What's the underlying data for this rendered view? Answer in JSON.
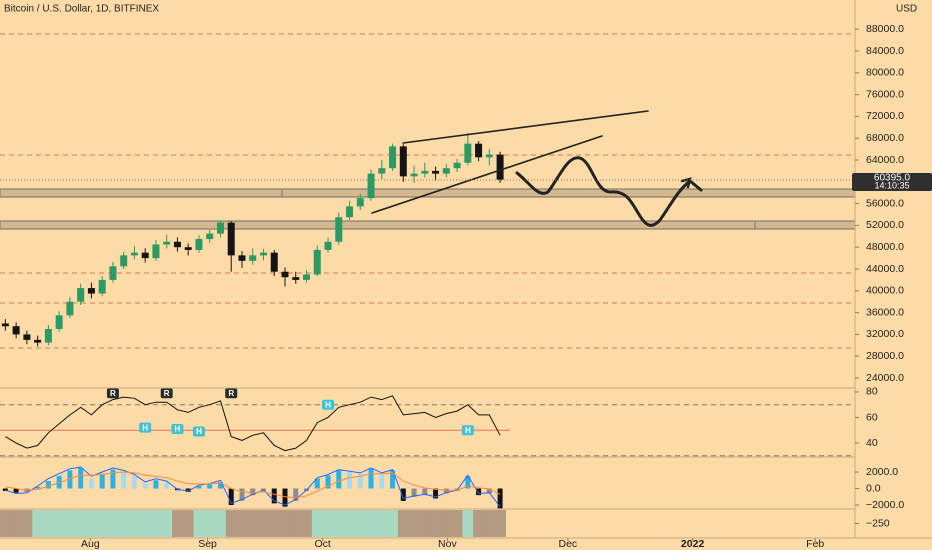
{
  "chart_data": [
    {
      "type": "candlestick",
      "title": "Bitcoin / U.S. Dollar, 1D, BITFINEX",
      "currency": "USD",
      "up_color": "#2b9a63",
      "down_color": "#141414",
      "open": [
        34000,
        33500,
        32000,
        31000,
        30500,
        33000,
        35500,
        38000,
        40500,
        39500,
        42000,
        44500,
        46500,
        47000,
        46000,
        48500,
        49000,
        48000,
        47500,
        49500,
        50500,
        52500,
        46500,
        45500,
        46500,
        47000,
        43500,
        42500,
        42000,
        43000,
        47500,
        49000,
        53500,
        55500,
        57000,
        61500,
        62500,
        66500,
        61000,
        61500,
        62000,
        61500,
        62500,
        63500,
        67000,
        64500,
        65000
      ],
      "high": [
        34800,
        34200,
        32700,
        31800,
        33700,
        36200,
        38900,
        41300,
        41500,
        42700,
        45300,
        47200,
        48200,
        47800,
        49300,
        50300,
        49800,
        48700,
        50200,
        51200,
        52900,
        52800,
        47300,
        47800,
        47700,
        47500,
        44300,
        43500,
        43800,
        48300,
        49800,
        54300,
        56500,
        57800,
        62300,
        64000,
        67000,
        66900,
        63000,
        63500,
        62800,
        63300,
        64200,
        69000,
        67500,
        66000,
        65500
      ],
      "low": [
        32700,
        31300,
        30200,
        29800,
        30000,
        32500,
        35000,
        37400,
        38600,
        39000,
        41500,
        44000,
        45800,
        45200,
        45500,
        47800,
        47200,
        46500,
        47000,
        48800,
        49800,
        43500,
        44200,
        44800,
        45600,
        42700,
        40800,
        41300,
        41500,
        42700,
        47000,
        48500,
        53000,
        54800,
        56500,
        60500,
        62000,
        60000,
        59800,
        60800,
        60200,
        60800,
        61800,
        63000,
        63800,
        63000,
        59800
      ],
      "close": [
        33500,
        32000,
        31000,
        30500,
        33000,
        35500,
        38000,
        40500,
        39500,
        42000,
        44500,
        46500,
        47000,
        46000,
        48500,
        49000,
        48000,
        47500,
        49500,
        50500,
        52500,
        46500,
        45500,
        46500,
        47000,
        43500,
        42500,
        42000,
        43000,
        47500,
        49000,
        53500,
        55500,
        57000,
        61500,
        62500,
        66500,
        61000,
        61500,
        62000,
        61500,
        62500,
        63500,
        67000,
        64500,
        65000,
        60400
      ],
      "xlim": [
        -0.5,
        79
      ],
      "xticks": [
        {
          "value": 7.9,
          "label": "Aug"
        },
        {
          "value": 18.8,
          "label": "Sep"
        },
        {
          "value": 29.5,
          "label": "Oct"
        },
        {
          "value": 41.1,
          "label": "Nov"
        },
        {
          "value": 52.3,
          "label": "Dec"
        },
        {
          "value": 63.9,
          "label": "2022"
        },
        {
          "value": 75.3,
          "label": "Feb"
        }
      ],
      "ylim": [
        22350,
        93360
      ],
      "yticks": [
        {
          "value": 88000,
          "label": "88000.0"
        },
        {
          "value": 84000,
          "label": "84000.0"
        },
        {
          "value": 80000,
          "label": "80000.0"
        },
        {
          "value": 76000,
          "label": "76000.0"
        },
        {
          "value": 72000,
          "label": "72000.0"
        },
        {
          "value": 68000,
          "label": "68000.0"
        },
        {
          "value": 64000,
          "label": "64000.0"
        },
        {
          "value": 56000,
          "label": "56000.0"
        },
        {
          "value": 52000,
          "label": "52000.0"
        },
        {
          "value": 48000,
          "label": "48000.0"
        },
        {
          "value": 44000,
          "label": "44000.0"
        },
        {
          "value": 40000,
          "label": "40000.0"
        },
        {
          "value": 36000,
          "label": "36000.0"
        },
        {
          "value": 32000,
          "label": "32000.0"
        },
        {
          "value": 28000,
          "label": "28000.0"
        },
        {
          "value": 24000,
          "label": "24000.0"
        }
      ],
      "last_price": {
        "value": 60395,
        "label": "60395.0"
      },
      "countdown": "14:10:35"
    },
    {
      "type": "line",
      "color": "#111111",
      "values": [
        45,
        40,
        36,
        38,
        48,
        55,
        62,
        68,
        62,
        70,
        74,
        76,
        75,
        70,
        72,
        72,
        66,
        64,
        68,
        70,
        73,
        45,
        42,
        46,
        48,
        38,
        34,
        36,
        42,
        56,
        60,
        68,
        70,
        72,
        76,
        74,
        77,
        62,
        63,
        64,
        60,
        63,
        65,
        70,
        62,
        62,
        46
      ],
      "ylim": [
        29.8,
        83.1
      ],
      "yticks": [
        80,
        60,
        40
      ],
      "levels": [
        70,
        30
      ],
      "midline": 50,
      "midline_color": "#e8715a",
      "badges": [
        {
          "text": "R",
          "index": 10,
          "value": 79
        },
        {
          "text": "R",
          "index": 15,
          "value": 79
        },
        {
          "text": "R",
          "index": 21,
          "value": 79
        },
        {
          "text": "H",
          "index": 30,
          "value": 70
        },
        {
          "text": "H",
          "index": 13,
          "value": 52
        },
        {
          "text": "H",
          "index": 16,
          "value": 51
        },
        {
          "text": "H",
          "index": 18,
          "value": 49
        },
        {
          "text": "H",
          "index": 43,
          "value": 50
        }
      ]
    },
    {
      "type": "macd",
      "histogram": [
        -300,
        -500,
        -400,
        200,
        900,
        1500,
        2200,
        2500,
        1200,
        1800,
        2300,
        2000,
        1500,
        600,
        1000,
        800,
        -200,
        -400,
        300,
        500,
        800,
        -2000,
        -1500,
        -800,
        -300,
        -1800,
        -2200,
        -1500,
        -300,
        1200,
        1600,
        2200,
        2000,
        1800,
        2400,
        1800,
        2200,
        -1500,
        -1000,
        -800,
        -1200,
        -600,
        -300,
        1500,
        -800,
        -600,
        -2400
      ],
      "macd": [
        -200,
        -600,
        -500,
        300,
        1200,
        1800,
        2400,
        2600,
        1500,
        2000,
        2500,
        2200,
        1700,
        800,
        1200,
        900,
        -100,
        -300,
        400,
        600,
        1000,
        -1800,
        -1300,
        -700,
        -200,
        -1500,
        -2000,
        -1300,
        -200,
        1300,
        1700,
        2300,
        2100,
        1900,
        2500,
        1900,
        2300,
        -1200,
        -900,
        -700,
        -1000,
        -500,
        -200,
        1600,
        -600,
        -500,
        -2200
      ],
      "signal": [
        200,
        0,
        -200,
        -100,
        300,
        700,
        1200,
        1600,
        1600,
        1700,
        1900,
        2000,
        1900,
        1600,
        1500,
        1300,
        900,
        600,
        550,
        560,
        700,
        0,
        -400,
        -500,
        -400,
        -700,
        -1000,
        -1100,
        -900,
        -300,
        300,
        900,
        1300,
        1500,
        1800,
        1800,
        1900,
        900,
        400,
        100,
        -100,
        -200,
        -200,
        300,
        100,
        -50,
        -700
      ],
      "colors": {
        "pos_up": "#25b3e8",
        "pos_down": "#a6dbee",
        "neg_down": "#111111",
        "neg_up": "#8c8c8c",
        "macd": "#2962ff",
        "signal": "#ff8a3d",
        "strip_pos": "#a9d9c3",
        "strip_neg": "#b39a80"
      },
      "ylim": [
        -2360,
        3700
      ],
      "yticks": [
        {
          "value": 2000,
          "label": "2000.0"
        },
        {
          "value": 0,
          "label": "0.0"
        },
        {
          "value": -2000,
          "label": "−2000.0"
        }
      ],
      "strip_ylim": [
        -500,
        0
      ],
      "strip_ticks": [
        {
          "value": -250,
          "label": "−250"
        }
      ]
    }
  ]
}
